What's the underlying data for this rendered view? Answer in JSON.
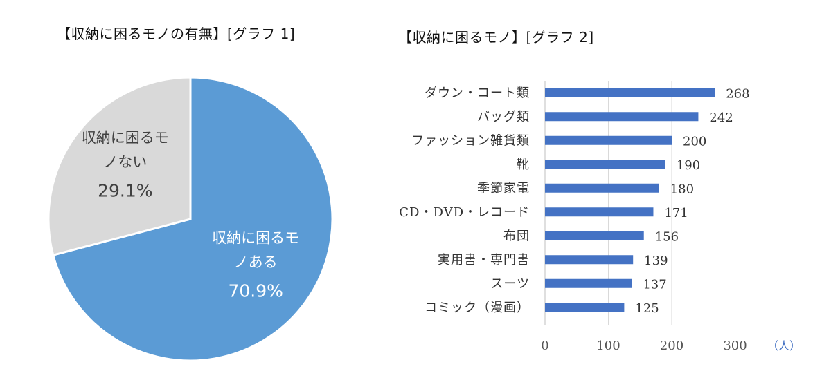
{
  "chart_data": [
    {
      "type": "pie",
      "title": "【収納に困るモノの有無】[グラフ 1]",
      "slices": [
        {
          "label_lines": [
            "収納に困るモ",
            "ノある"
          ],
          "value": 70.9,
          "pct_text": "70.9%",
          "color": "#5b9bd5",
          "text_color": "#ffffff"
        },
        {
          "label_lines": [
            "収納に困るモ",
            "ノない"
          ],
          "value": 29.1,
          "pct_text": "29.1%",
          "color": "#d9d9d9",
          "text_color": "#404040"
        }
      ]
    },
    {
      "type": "bar",
      "orientation": "horizontal",
      "title": "【収納に困るモノ】[グラフ 2]",
      "categories": [
        "ダウン・コート類",
        "バッグ類",
        "ファッション雑貨類",
        "靴",
        "季節家電",
        "CD・DVD・レコード",
        "布団",
        "実用書・専門書",
        "スーツ",
        "コミック（漫画）"
      ],
      "values": [
        268,
        242,
        200,
        190,
        180,
        171,
        156,
        139,
        137,
        125
      ],
      "xlim": [
        0,
        300
      ],
      "xticks": [
        "0",
        "100",
        "200",
        "300"
      ],
      "xlabel": "（人）",
      "grid": true,
      "bar_color": "#4472c4"
    }
  ]
}
